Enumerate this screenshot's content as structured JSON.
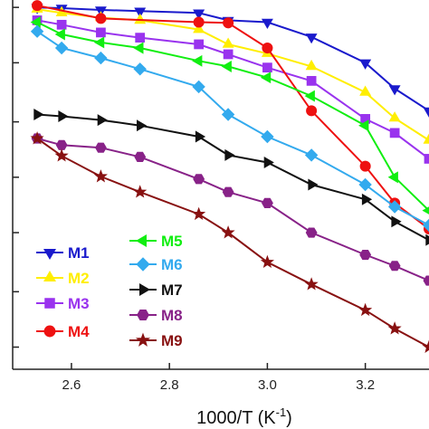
{
  "chart_data": {
    "type": "line",
    "xlabel": "1000/T (K",
    "xlabel_sup": "-1",
    "xlabel_close": ")",
    "xlim": [
      2.48,
      3.33
    ],
    "ylim": [
      0,
      1
    ],
    "x_ticks": [
      2.6,
      2.8,
      3.0,
      3.2
    ],
    "x_tick_labels": [
      "2.6",
      "2.8",
      "3.0",
      "3.2"
    ],
    "y_ticks": [
      0.06,
      0.21,
      0.37,
      0.52,
      0.67,
      0.83,
      0.98
    ],
    "grid": false,
    "legend_position": "bottom-left",
    "series": [
      {
        "name": "M1",
        "color": "#1a1acc",
        "marker": "triangle-down",
        "x": [
          2.53,
          2.58,
          2.66,
          2.74,
          2.86,
          2.92,
          3.0,
          3.09,
          3.2,
          3.26,
          3.33
        ],
        "y": [
          0.98,
          0.978,
          0.973,
          0.97,
          0.965,
          0.945,
          0.94,
          0.9,
          0.83,
          0.76,
          0.7
        ]
      },
      {
        "name": "M2",
        "color": "#ffee00",
        "marker": "triangle-up",
        "x": [
          2.53,
          2.58,
          2.66,
          2.74,
          2.86,
          2.92,
          3.0,
          3.09,
          3.2,
          3.26,
          3.33
        ],
        "y": [
          0.975,
          0.965,
          0.952,
          0.945,
          0.92,
          0.88,
          0.855,
          0.82,
          0.75,
          0.68,
          0.62
        ]
      },
      {
        "name": "M3",
        "color": "#9933ee",
        "marker": "square",
        "x": [
          2.53,
          2.58,
          2.66,
          2.74,
          2.86,
          2.92,
          3.0,
          3.09,
          3.2,
          3.26,
          3.33
        ],
        "y": [
          0.945,
          0.933,
          0.912,
          0.898,
          0.88,
          0.853,
          0.817,
          0.781,
          0.678,
          0.64,
          0.57
        ]
      },
      {
        "name": "M4",
        "color": "#ee1111",
        "marker": "circle",
        "x": [
          2.53,
          2.66,
          2.86,
          2.92,
          3.0,
          3.09,
          3.2,
          3.26,
          3.33
        ],
        "y": [
          0.985,
          0.95,
          0.94,
          0.938,
          0.87,
          0.7,
          0.55,
          0.45,
          0.38
        ]
      },
      {
        "name": "M5",
        "color": "#11ee11",
        "marker": "triangle-left",
        "x": [
          2.53,
          2.58,
          2.66,
          2.74,
          2.86,
          2.92,
          3.0,
          3.09,
          3.2,
          3.26,
          3.33
        ],
        "y": [
          0.94,
          0.907,
          0.885,
          0.87,
          0.835,
          0.82,
          0.79,
          0.74,
          0.66,
          0.52,
          0.43
        ]
      },
      {
        "name": "M6",
        "color": "#33aaee",
        "marker": "diamond",
        "x": [
          2.53,
          2.58,
          2.66,
          2.74,
          2.86,
          2.92,
          3.0,
          3.09,
          3.2,
          3.26,
          3.33
        ],
        "y": [
          0.915,
          0.87,
          0.843,
          0.813,
          0.765,
          0.69,
          0.63,
          0.58,
          0.5,
          0.44,
          0.39
        ]
      },
      {
        "name": "M7",
        "color": "#111111",
        "marker": "triangle-right",
        "x": [
          2.53,
          2.58,
          2.66,
          2.74,
          2.86,
          2.92,
          3.0,
          3.09,
          3.2,
          3.26,
          3.33
        ],
        "y": [
          0.69,
          0.685,
          0.675,
          0.66,
          0.63,
          0.58,
          0.56,
          0.5,
          0.46,
          0.4,
          0.35
        ]
      },
      {
        "name": "M8",
        "color": "#882288",
        "marker": "hexagon",
        "x": [
          2.53,
          2.58,
          2.66,
          2.74,
          2.86,
          2.92,
          3.0,
          3.09,
          3.2,
          3.26,
          3.33
        ],
        "y": [
          0.625,
          0.607,
          0.6,
          0.575,
          0.515,
          0.48,
          0.45,
          0.37,
          0.31,
          0.28,
          0.24
        ]
      },
      {
        "name": "M9",
        "color": "#881111",
        "marker": "star",
        "x": [
          2.53,
          2.58,
          2.66,
          2.74,
          2.86,
          2.92,
          3.0,
          3.09,
          3.2,
          3.26,
          3.33
        ],
        "y": [
          0.625,
          0.578,
          0.522,
          0.48,
          0.42,
          0.37,
          0.29,
          0.23,
          0.16,
          0.11,
          0.06
        ]
      }
    ]
  }
}
